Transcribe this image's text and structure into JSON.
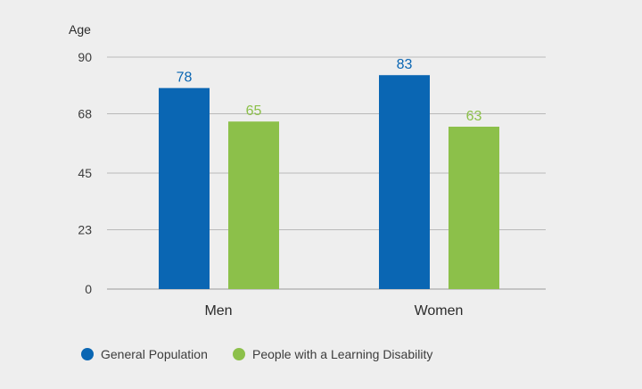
{
  "chart_data": {
    "type": "bar",
    "ylabel": "Age",
    "categories": [
      "Men",
      "Women"
    ],
    "yticks": [
      0,
      23,
      45,
      68,
      90
    ],
    "ylim": [
      0,
      90
    ],
    "grid": true,
    "legend_position": "bottom-left",
    "series": [
      {
        "name": "General Population",
        "values": [
          78,
          83
        ],
        "color": "#0a66b3"
      },
      {
        "name": "People with a Learning Disability",
        "values": [
          65,
          63
        ],
        "color": "#8cc04a"
      }
    ]
  }
}
